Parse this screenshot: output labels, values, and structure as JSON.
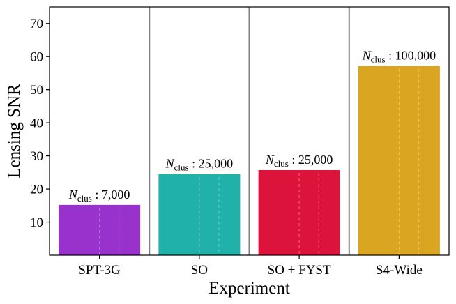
{
  "chart_data": {
    "type": "bar",
    "title": "",
    "xlabel": "Experiment",
    "ylabel": "Lensing SNR",
    "ylim": [
      0,
      75
    ],
    "yticks": [
      10,
      20,
      30,
      40,
      50,
      60,
      70
    ],
    "grid": false,
    "categories": [
      "SPT-3G",
      "SO",
      "SO + FYST",
      "S4-Wide"
    ],
    "values": [
      15.2,
      24.5,
      25.7,
      57.2
    ],
    "colors": [
      "#9932CC",
      "#20B2AA",
      "#DC143C",
      "#DAA520"
    ],
    "annotations": [
      {
        "symbol": "N",
        "subscript": "clus",
        "text": " : 7,000"
      },
      {
        "symbol": "N",
        "subscript": "clus",
        "text": " : 25,000"
      },
      {
        "symbol": "N",
        "subscript": "clus",
        "text": " : 25,000"
      },
      {
        "symbol": "N",
        "subscript": "clus",
        "text": " : 100,000"
      }
    ],
    "separator_color": "#808080"
  }
}
